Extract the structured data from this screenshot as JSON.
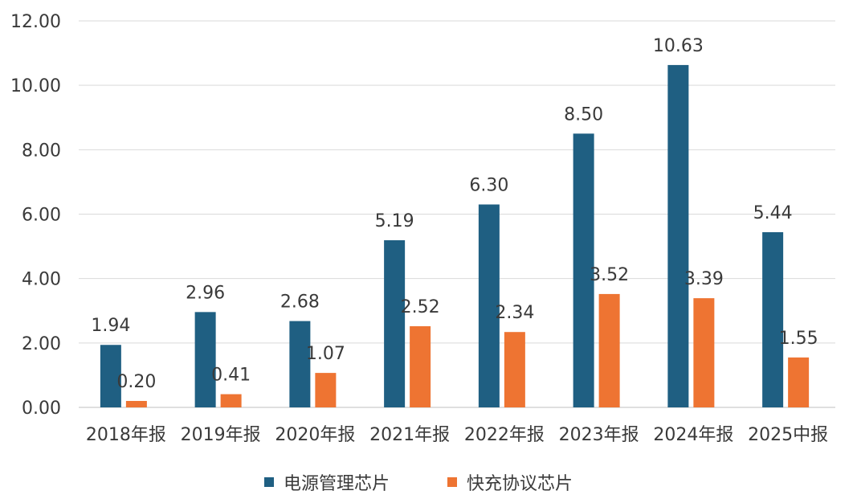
{
  "chart_data": {
    "type": "bar",
    "title": "",
    "xlabel": "",
    "ylabel": "",
    "categories": [
      "2018年报",
      "2019年报",
      "2020年报",
      "2021年报",
      "2022年报",
      "2023年报",
      "2024年报",
      "2025中报"
    ],
    "series": [
      {
        "name": "电源管理芯片",
        "values": [
          1.94,
          2.96,
          2.68,
          5.19,
          6.3,
          8.5,
          10.63,
          5.44
        ],
        "labels": [
          "1.94",
          "2.96",
          "2.68",
          "5.19",
          "6.30",
          "8.50",
          "10.63",
          "5.44"
        ],
        "color": "#1f5f82"
      },
      {
        "name": "快充协议芯片",
        "values": [
          0.2,
          0.41,
          1.07,
          2.52,
          2.34,
          3.52,
          3.39,
          1.55
        ],
        "labels": [
          "0.20",
          "0.41",
          "1.07",
          "2.52",
          "2.34",
          "3.52",
          "3.39",
          "1.55"
        ],
        "color": "#ee7432"
      }
    ],
    "ylim": [
      0,
      12
    ],
    "yticks": [
      "0.00",
      "2.00",
      "4.00",
      "6.00",
      "8.00",
      "10.00",
      "12.00"
    ],
    "grid": true,
    "legend_position": "bottom"
  }
}
